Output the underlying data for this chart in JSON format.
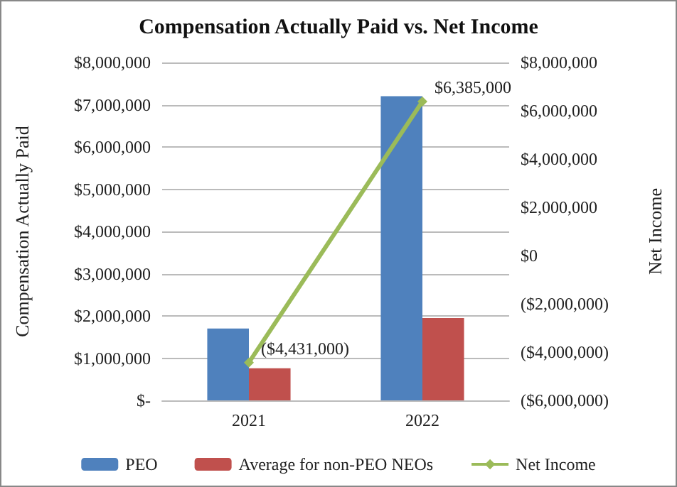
{
  "chart_data": {
    "type": "bar",
    "title": "Compensation Actually Paid vs. Net Income",
    "ylabel": "Compensation Actually Paid",
    "y2label": "Net Income",
    "categories": [
      "2021",
      "2022"
    ],
    "series": [
      {
        "name": "PEO",
        "color": "#4f81bd",
        "values": [
          1700000,
          7200000
        ]
      },
      {
        "name": "Average for non-PEO NEOs",
        "color": "#c0504d",
        "values": [
          760000,
          1950000
        ]
      },
      {
        "name": "Net Income",
        "type": "line",
        "axis": "y2",
        "color": "#9bbb59",
        "marker": "diamond",
        "values": [
          -4431000,
          6385000
        ],
        "value_labels": [
          "($4,431,000)",
          "$6,385,000"
        ]
      }
    ],
    "ylim": [
      0,
      8000000
    ],
    "yticks": [
      {
        "value": 0,
        "label": "$-"
      },
      {
        "value": 1000000,
        "label": "$1,000,000"
      },
      {
        "value": 2000000,
        "label": "$2,000,000"
      },
      {
        "value": 3000000,
        "label": "$3,000,000"
      },
      {
        "value": 4000000,
        "label": "$4,000,000"
      },
      {
        "value": 5000000,
        "label": "$5,000,000"
      },
      {
        "value": 6000000,
        "label": "$6,000,000"
      },
      {
        "value": 7000000,
        "label": "$7,000,000"
      },
      {
        "value": 8000000,
        "label": "$8,000,000"
      }
    ],
    "y2lim": [
      -6000000,
      8000000
    ],
    "y2ticks": [
      {
        "value": -6000000,
        "label": "($6,000,000)"
      },
      {
        "value": -4000000,
        "label": "($4,000,000)"
      },
      {
        "value": -2000000,
        "label": "($2,000,000)"
      },
      {
        "value": 0,
        "label": "$0"
      },
      {
        "value": 2000000,
        "label": "$2,000,000"
      },
      {
        "value": 4000000,
        "label": "$4,000,000"
      },
      {
        "value": 6000000,
        "label": "$6,000,000"
      },
      {
        "value": 8000000,
        "label": "$8,000,000"
      }
    ],
    "grid": "y",
    "legend": "bottom"
  }
}
